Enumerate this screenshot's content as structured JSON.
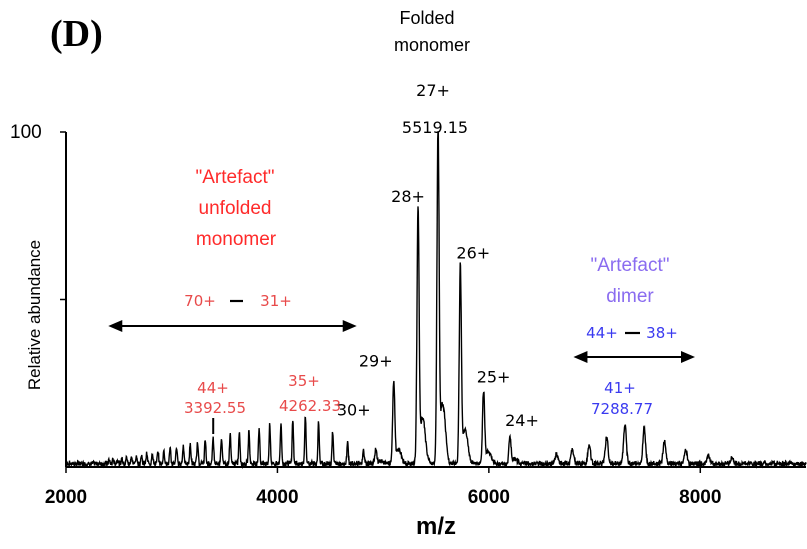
{
  "panel_label": "(D)",
  "colors": {
    "black": "#000000",
    "red": "#ff3030",
    "violet": "#8a6cf0",
    "blue": "#3a3af0",
    "annRed": "#e84a4a"
  },
  "chart_data": {
    "type": "line",
    "title": "",
    "xlabel": "m/z",
    "ylabel": "Relative abundance",
    "xlim": [
      2000,
      9000
    ],
    "ylim": [
      0,
      100
    ],
    "x_ticks": [
      "2000",
      "4000",
      "6000",
      "8000"
    ],
    "y_ticks": [
      "100"
    ],
    "grid": false,
    "folded_monomer_title": [
      "Folded",
      "monomer"
    ],
    "folded_peaks": [
      {
        "charge": "30+",
        "mz": 4930,
        "height": 4
      },
      {
        "charge": "29+",
        "mz": 5100,
        "height": 24
      },
      {
        "charge": "28+",
        "mz": 5330,
        "height": 75
      },
      {
        "charge": "27+",
        "mz": 5519.15,
        "height": 100,
        "value_label": "5519.15"
      },
      {
        "charge": "26+",
        "mz": 5730,
        "height": 58
      },
      {
        "charge": "25+",
        "mz": 5950,
        "height": 21
      },
      {
        "charge": "24+",
        "mz": 6200,
        "height": 8
      }
    ],
    "unfolded": {
      "title": [
        "\"Artefact\"",
        "unfolded",
        "monomer"
      ],
      "range_start": "70+",
      "range_end": "31+",
      "peak_charge": "44+",
      "peak_value": "3392.55",
      "peak_mz": 3392.55,
      "peak2_charge": "35+",
      "peak2_value": "4262.33",
      "peak2_mz": 4262.33,
      "arrow_range": [
        2400,
        4750
      ],
      "envelope": [
        [
          2400,
          1
        ],
        [
          2800,
          3
        ],
        [
          3200,
          6
        ],
        [
          3600,
          9
        ],
        [
          4000,
          12
        ],
        [
          4300,
          14
        ],
        [
          4600,
          8
        ],
        [
          4900,
          3
        ]
      ]
    },
    "dimer": {
      "title": [
        "\"Artefact\"",
        "dimer"
      ],
      "range_start": "44+",
      "range_end": "38+",
      "peak_charge": "41+",
      "peak_value": "7288.77",
      "peak_mz": 7288.77,
      "arrow_range": [
        6800,
        7950
      ],
      "envelope": [
        [
          6500,
          2
        ],
        [
          6900,
          5
        ],
        [
          7100,
          8
        ],
        [
          7300,
          12
        ],
        [
          7450,
          11
        ],
        [
          7700,
          6
        ],
        [
          8000,
          3
        ],
        [
          8500,
          1
        ]
      ]
    }
  }
}
